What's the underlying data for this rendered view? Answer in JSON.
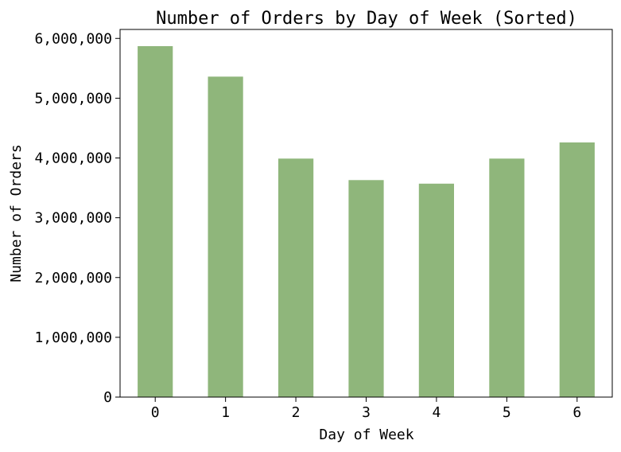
{
  "chart_data": {
    "type": "bar",
    "title": "Number of Orders by Day of Week (Sorted)",
    "xlabel": "Day of Week",
    "ylabel": "Number of Orders",
    "categories": [
      "0",
      "1",
      "2",
      "3",
      "4",
      "5",
      "6"
    ],
    "values": [
      5870000,
      5360000,
      3990000,
      3630000,
      3570000,
      3990000,
      4260000
    ],
    "ylim": [
      0,
      6150000
    ],
    "yticks": [
      0,
      1000000,
      2000000,
      3000000,
      4000000,
      5000000,
      6000000
    ],
    "ytick_labels": [
      "0",
      "1,000,000",
      "2,000,000",
      "3,000,000",
      "4,000,000",
      "5,000,000",
      "6,000,000"
    ],
    "bar_color": "#8fb67b",
    "grid": false,
    "legend": "none"
  }
}
